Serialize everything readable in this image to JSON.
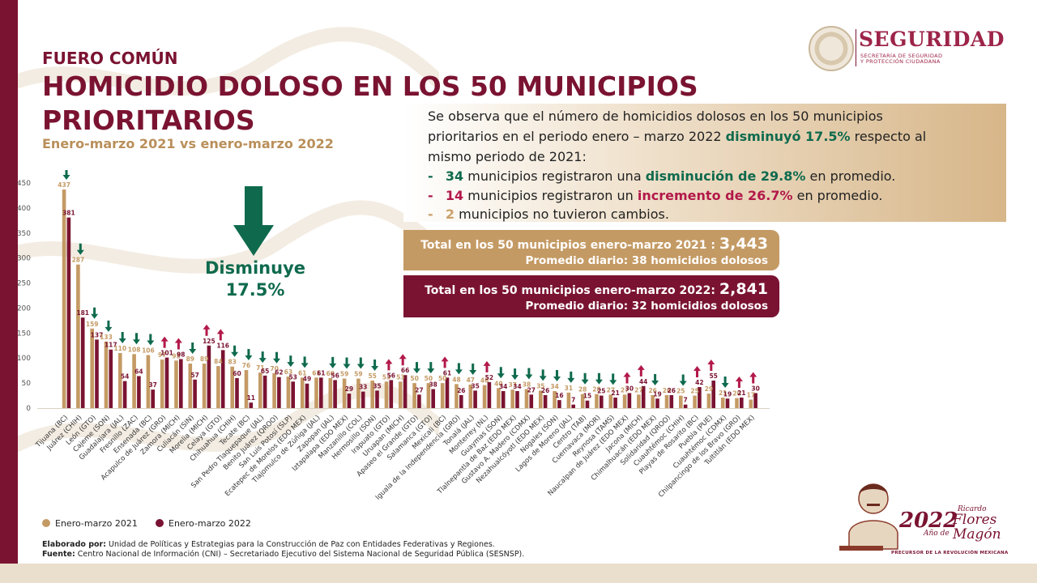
{
  "header": {
    "kicker": "FUERO COMÚN",
    "title_line1": "HOMICIDIO DOLOSO EN LOS 50 MUNICIPIOS",
    "title_line2": "PRIORITARIOS",
    "subtitle": "Enero-marzo 2021 vs enero-marzo 2022"
  },
  "logo": {
    "title": "SEGURIDAD",
    "sub1": "SECRETARÍA DE SEGURIDAD",
    "sub2": "Y PROTECCIÓN CIUDADANA"
  },
  "summary": {
    "l1": "Se observa que el número de homicidios dolosos en los 50 municipios",
    "l2a": "prioritarios en el periodo enero – marzo 2022 ",
    "l2b": "disminuyó 17.5%",
    "l2c": " respecto al",
    "l3": "mismo periodo de 2021:",
    "b1_dash": "-",
    "b1_num": "34",
    "b1_text": " municipios registraron una ",
    "b1_bold": "disminución de 29.8%",
    "b1_end": " en promedio.",
    "b2_dash": "-",
    "b2_num": "14",
    "b2_text": " municipios registraron un ",
    "b2_bold": "incremento de 26.7%",
    "b2_end": " en promedio.",
    "b3_dash": "-",
    "b3_num": "2",
    "b3_text": " municipios no tuvieron cambios."
  },
  "totals": {
    "t2021_label": "Total en los 50 municipios enero-marzo 2021 : ",
    "t2021_value": "3,443",
    "t2021_avg": "Promedio diario: 38 homicidios dolosos",
    "t2022_label": "Total en los 50 municipios enero-marzo 2022: ",
    "t2022_value": "2,841",
    "t2022_avg": "Promedio diario: 32 homicidios dolosos"
  },
  "highlight": {
    "line1": "Disminuye",
    "line2": "17.5%"
  },
  "legend": {
    "s2021": "Enero-marzo 2021",
    "s2022": "Enero-marzo 2022"
  },
  "footer": {
    "made_by_label": "Elaborado por:",
    "made_by": " Unidad de Políticas y Estrategias para la Construcción de Paz con Entidades Federativas y Regiones.",
    "source_label": "Fuente:",
    "source": " Centro Nacional de Información (CNI) – Secretariado Ejecutivo del Sistema Nacional de Seguridad Pública (SESNSP)."
  },
  "badge": {
    "year": "2022",
    "ano": "Año de",
    "name1": "Ricardo",
    "name2": "Flores",
    "name3": "Magón",
    "tagline": "PRECURSOR DE LA REVOLUCIÓN MEXICANA"
  },
  "colors": {
    "s2021": "#c49a64",
    "s2022": "#7a1331",
    "down": "#0f6a4d",
    "up": "#b2194a"
  },
  "chart_data": {
    "type": "bar",
    "ylim": [
      0,
      450
    ],
    "yticks": [
      0,
      50,
      100,
      150,
      200,
      250,
      300,
      350,
      400,
      450
    ],
    "categories": [
      "Tijuana (BC)",
      "Juárez (CHIH)",
      "León (GTO)",
      "Cajeme (SON)",
      "Guadalajara (JAL)",
      "Fresnillo (ZAC)",
      "Ensenada (BC)",
      "Acapulco de Juárez (GRO)",
      "Zamora (MICH)",
      "Culiacán (SIN)",
      "Morelia (MICH)",
      "Celaya (GTO)",
      "Chihuahua (CHIH)",
      "Tecate (BC)",
      "San Pedro Tlaquepaque (JAL)",
      "Benito Juárez (QROO)",
      "San Luis Potosí (SLP)",
      "Ecatepec de Morelos (EDO MEX)",
      "Tlajomulco de Zúñiga (JAL)",
      "Zapopan (JAL)",
      "Iztapalapa (EDO MEX)",
      "Manzanillo (COL)",
      "Hermosillo (SON)",
      "Irapuato (GTO)",
      "Uruapan (MICH)",
      "Apaseo el Grande (GTO)",
      "Salamanca (GTO)",
      "Mexicali (BC)",
      "Iguala de la Independencia (GRO)",
      "Tonalá (JAL)",
      "Monterrey (NL)",
      "Guaymas (SON)",
      "Tlalnepantla de Baz (EDO MEX)",
      "Gustavo A. Madero (CDMX)",
      "Nezahualcóyotl (EDO MEX)",
      "Nogales (SON)",
      "Lagos de Moreno (JAL)",
      "Centro (TAB)",
      "Cuernavaca (MOR)",
      "Reynosa (TAMS)",
      "Naucalpan de Juárez (EDO MEX)",
      "Jacona (MICH)",
      "Chimalhuacán (EDO MEX)",
      "Solidaridad (QROO)",
      "Cuauhtémoc (CHIH)",
      "Playas de Rosarito (BC)",
      "Puebla (PUE)",
      "Cuauhtémoc (CDMX)",
      "Chilpancingo de los Bravo (GRO)",
      "Tultitlán (EDO MEX)"
    ],
    "series": [
      {
        "name": "Enero-marzo 2021",
        "values": [
          437,
          287,
          159,
          133,
          110,
          108,
          106,
          97,
          95,
          89,
          89,
          84,
          83,
          76,
          71,
          70,
          63,
          61,
          61,
          60,
          59,
          59,
          55,
          53,
          53,
          50,
          50,
          50,
          48,
          47,
          46,
          40,
          37,
          38,
          35,
          34,
          31,
          28,
          28,
          27,
          27,
          27,
          26,
          26,
          25,
          25,
          29,
          21,
          20,
          17
        ]
      },
      {
        "name": "Enero-marzo 2022",
        "values": [
          381,
          181,
          137,
          117,
          54,
          64,
          37,
          101,
          98,
          57,
          125,
          116,
          60,
          11,
          65,
          62,
          53,
          49,
          61,
          56,
          29,
          33,
          35,
          56,
          66,
          27,
          38,
          61,
          26,
          35,
          52,
          34,
          34,
          27,
          26,
          16,
          7,
          15,
          25,
          21,
          30,
          44,
          19,
          26,
          7,
          42,
          55,
          19,
          21,
          30
        ]
      }
    ],
    "changes": [
      "down",
      "down",
      "down",
      "down",
      "down",
      "down",
      "down",
      "up",
      "up",
      "down",
      "up",
      "up",
      "down",
      "down",
      "down",
      "down",
      "down",
      "down",
      "none",
      "down",
      "down",
      "down",
      "down",
      "up",
      "up",
      "down",
      "down",
      "up",
      "down",
      "down",
      "up",
      "down",
      "down",
      "down",
      "down",
      "down",
      "down",
      "down",
      "down",
      "down",
      "up",
      "up",
      "down",
      "none",
      "down",
      "up",
      "up",
      "down",
      "up",
      "up"
    ]
  }
}
